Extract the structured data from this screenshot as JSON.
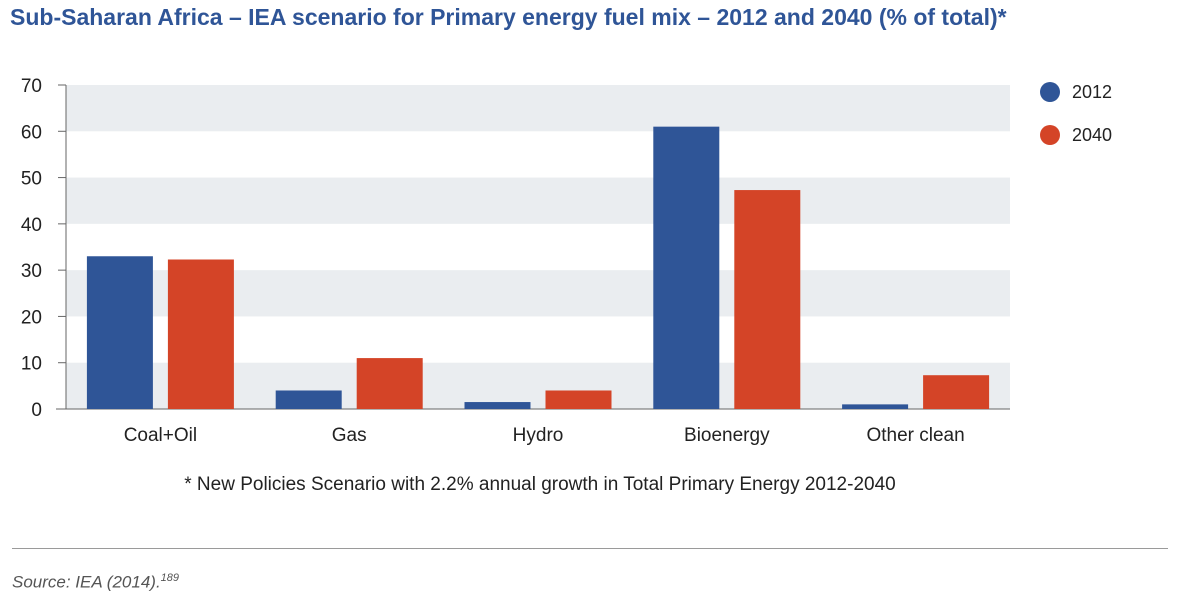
{
  "title": "Sub-Saharan Africa – IEA scenario for Primary energy fuel mix – 2012 and 2040 (% of total)*",
  "footnote": "* New Policies Scenario with 2.2% annual growth in Total Primary Energy 2012-2040",
  "source": {
    "text": "Source: IEA (2014).",
    "sup": "189"
  },
  "colors": {
    "series_2012": "#2f5597",
    "series_2040": "#d44427",
    "band": "#eaedf0"
  },
  "chart_data": {
    "type": "bar",
    "title": "Sub-Saharan Africa – IEA scenario for Primary energy fuel mix – 2012 and 2040 (% of total)*",
    "categories": [
      "Coal+Oil",
      "Gas",
      "Hydro",
      "Bioenergy",
      "Other clean"
    ],
    "series": [
      {
        "name": "2012",
        "values": [
          33,
          4,
          1.5,
          61,
          1
        ]
      },
      {
        "name": "2040",
        "values": [
          32.3,
          11,
          4,
          47.3,
          7.3
        ]
      }
    ],
    "yticks": [
      0,
      10,
      20,
      30,
      40,
      50,
      60,
      70
    ],
    "ylim": [
      0,
      70
    ],
    "xlabel": "",
    "ylabel": "",
    "grid": "alternating horizontal bands",
    "legend": "top-right"
  }
}
